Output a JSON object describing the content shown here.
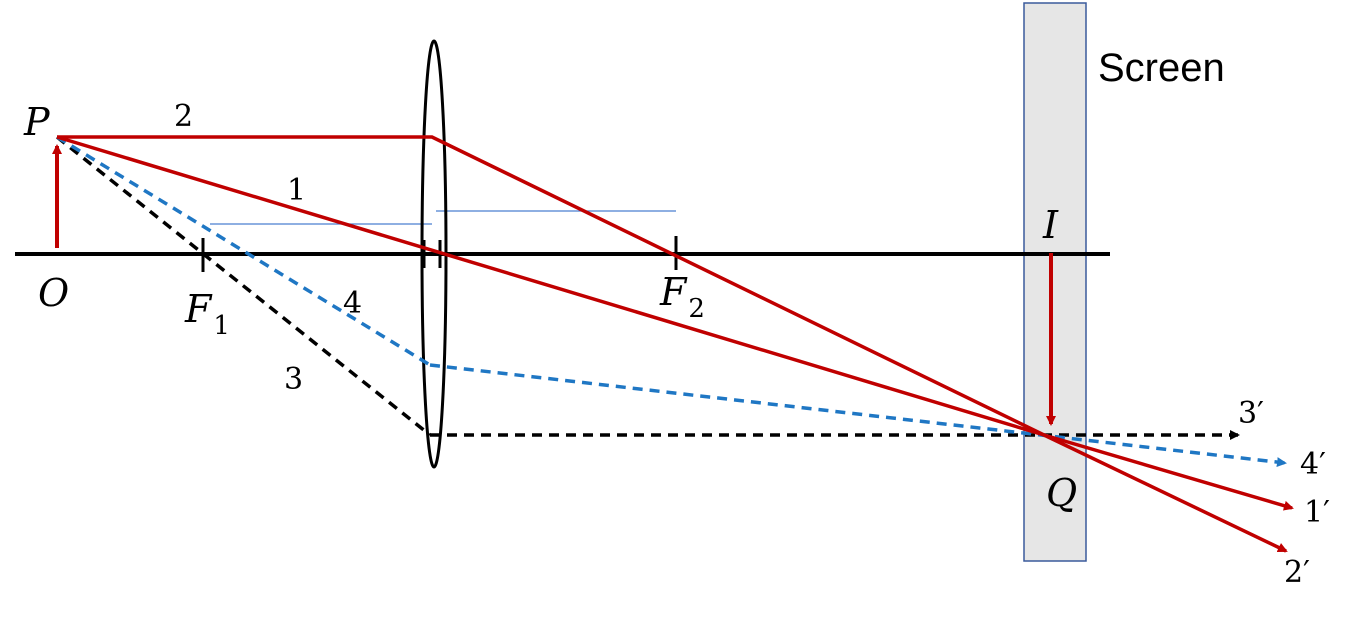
{
  "screen_label": "Screen",
  "points": {
    "P": "P",
    "O": "O",
    "I": "I",
    "Q": "Q",
    "F1_letter": "F",
    "F1_sub": "1",
    "F2_letter": "F",
    "F2_sub": "2"
  },
  "rays": {
    "r1": "1",
    "r2": "2",
    "r3": "3",
    "r4": "4",
    "r1_out": "1′",
    "r2_out": "2′",
    "r3_out": "3′",
    "r4_out": "4′"
  },
  "colors": {
    "red": "#c00000",
    "blue": "#1f77c4",
    "black": "#000000",
    "screen_fill": "#e6e6e6",
    "screen_border": "#3a5a9c",
    "guide_line": "#4a7fd0"
  }
}
